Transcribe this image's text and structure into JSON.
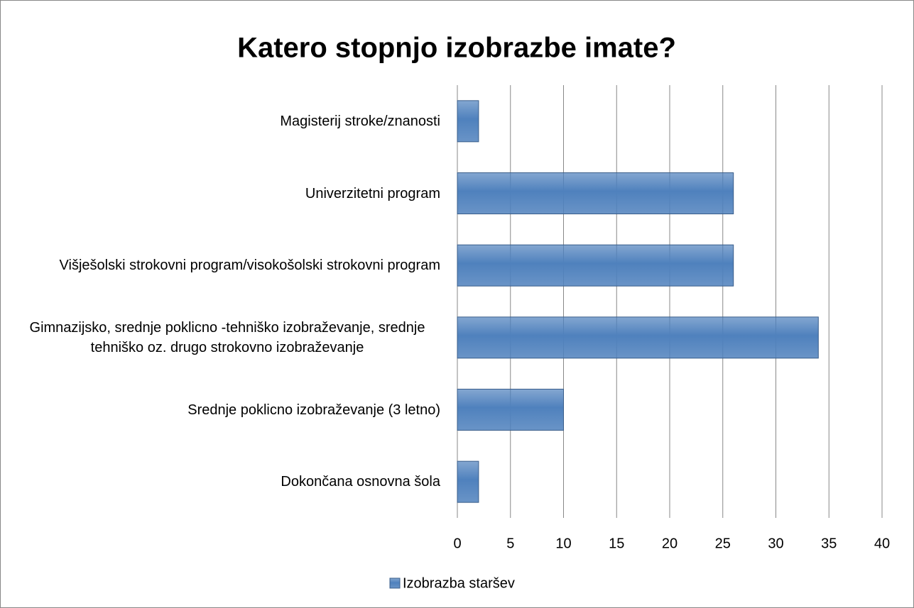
{
  "chart_data": {
    "type": "bar",
    "orientation": "horizontal",
    "title": "Katero stopnjo izobrazbe imate?",
    "categories": [
      "Magisterij stroke/znanosti",
      "Univerzitetni program",
      "Višješolski strokovni program/visokošolski strokovni program",
      "Gimnazijsko, srednje poklicno -tehniško izobraževanje, srednje tehniško oz. drugo strokovno izobraževanje",
      "Srednje poklicno izobraževanje (3 letno)",
      "Dokončana osnovna šola"
    ],
    "series": [
      {
        "name": "Izobrazba staršev",
        "color": "#4f81bd",
        "values": [
          2,
          26,
          26,
          34,
          10,
          2
        ]
      }
    ],
    "xlim": [
      0,
      40
    ],
    "xticks": [
      0,
      5,
      10,
      15,
      20,
      25,
      30,
      35,
      40
    ],
    "grid": true,
    "legend": "bottom"
  }
}
